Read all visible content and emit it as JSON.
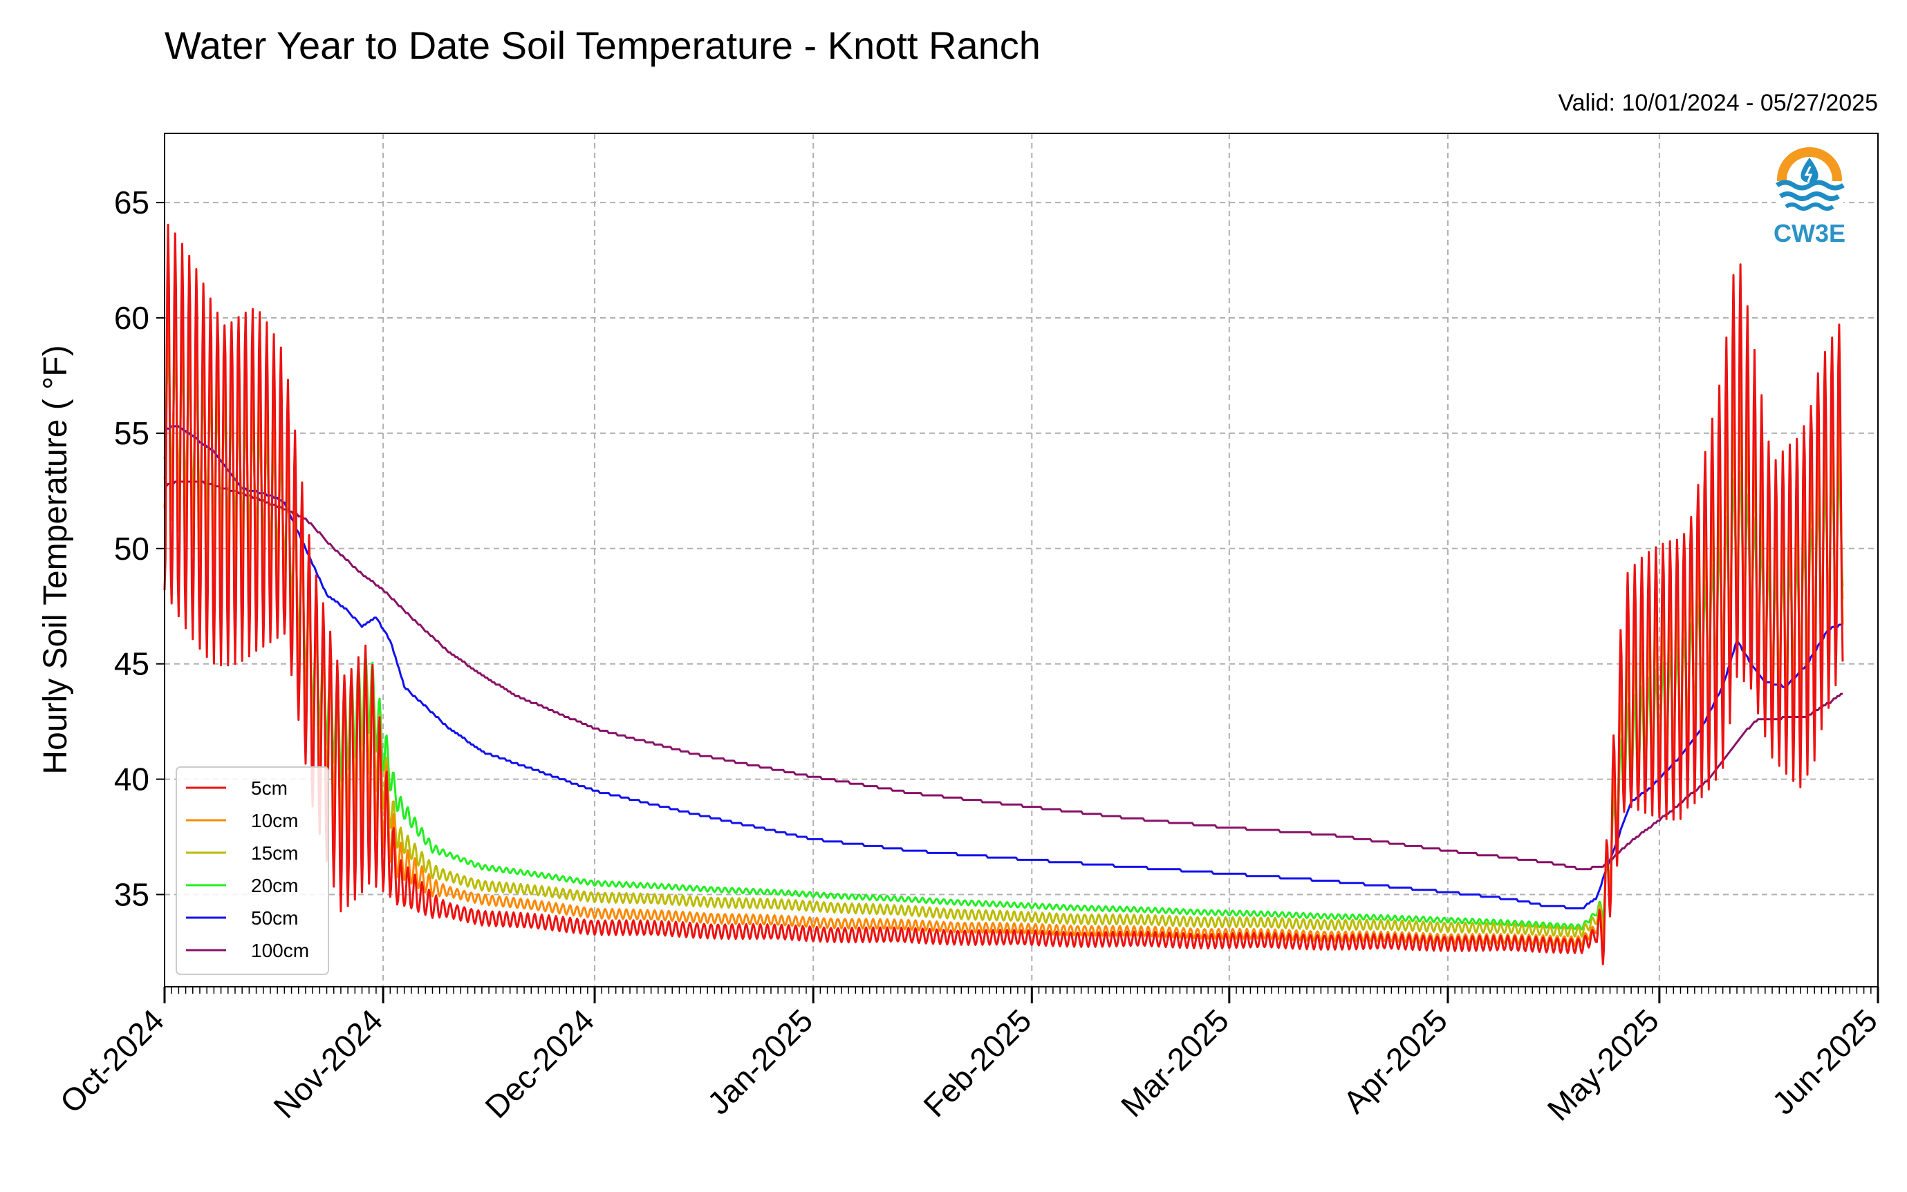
{
  "chart_data": {
    "type": "line",
    "title": "Water Year to Date Soil Temperature - Knott Ranch",
    "subtitle": "Valid: 10/01/2024 - 05/27/2025",
    "ylabel": "Hourly Soil Temperature ( °F)",
    "xlabel": "",
    "ylim": [
      31,
      68
    ],
    "xlim": [
      "2024-10-01",
      "2025-06-01"
    ],
    "grid": true,
    "legend_position": "lower-left",
    "x_ticks": [
      "Oct-2024",
      "Nov-2024",
      "Dec-2024",
      "Jan-2025",
      "Feb-2025",
      "Mar-2025",
      "Apr-2025",
      "May-2025",
      "Jun-2025"
    ],
    "x_tick_dates": [
      "2024-10-01",
      "2024-11-01",
      "2024-12-01",
      "2025-01-01",
      "2025-02-01",
      "2025-03-01",
      "2025-04-01",
      "2025-05-01",
      "2025-06-01"
    ],
    "y_ticks": [
      35,
      40,
      45,
      50,
      55,
      60,
      65
    ],
    "series": [
      {
        "name": "5cm",
        "color": "#ee1111",
        "daily_swing": true,
        "points": [
          [
            "2024-10-01",
            55
          ],
          [
            "2024-10-08",
            53.5
          ],
          [
            "2024-10-14",
            53
          ],
          [
            "2024-10-18",
            51.5
          ],
          [
            "2024-10-22",
            44
          ],
          [
            "2024-10-26",
            40
          ],
          [
            "2024-10-30",
            41
          ],
          [
            "2024-11-03",
            35.5
          ],
          [
            "2024-11-08",
            34.5
          ],
          [
            "2024-11-15",
            34
          ],
          [
            "2024-12-01",
            33.6
          ],
          [
            "2025-01-01",
            33.3
          ],
          [
            "2025-02-01",
            33.1
          ],
          [
            "2025-03-01",
            33.0
          ],
          [
            "2025-04-01",
            32.9
          ],
          [
            "2025-04-20",
            32.8
          ],
          [
            "2025-04-23",
            33.5
          ],
          [
            "2025-04-26",
            43
          ],
          [
            "2025-05-04",
            45
          ],
          [
            "2025-05-10",
            49
          ],
          [
            "2025-05-12",
            53
          ],
          [
            "2025-05-17",
            47
          ],
          [
            "2025-05-21",
            48
          ],
          [
            "2025-05-24",
            51
          ],
          [
            "2025-05-27",
            52.5
          ]
        ],
        "amps": [
          [
            "2024-10-01",
            8
          ],
          [
            "2024-10-14",
            7
          ],
          [
            "2024-10-18",
            6
          ],
          [
            "2024-10-22",
            5
          ],
          [
            "2024-10-30",
            5
          ],
          [
            "2024-11-03",
            1
          ],
          [
            "2024-11-10",
            0.3
          ],
          [
            "2025-04-22",
            0.3
          ],
          [
            "2025-04-26",
            5
          ],
          [
            "2025-05-05",
            6
          ],
          [
            "2025-05-12",
            9
          ],
          [
            "2025-05-17",
            6
          ],
          [
            "2025-05-23",
            8
          ],
          [
            "2025-05-27",
            7
          ]
        ]
      },
      {
        "name": "10cm",
        "color": "#ff8800",
        "daily_swing": true,
        "points": [
          [
            "2024-10-01",
            56
          ],
          [
            "2024-10-08",
            54
          ],
          [
            "2024-10-14",
            53
          ],
          [
            "2024-10-18",
            51.5
          ],
          [
            "2024-10-22",
            44
          ],
          [
            "2024-10-26",
            40.5
          ],
          [
            "2024-10-30",
            42
          ],
          [
            "2024-11-03",
            36.5
          ],
          [
            "2024-11-08",
            35.3
          ],
          [
            "2024-11-15",
            34.8
          ],
          [
            "2024-12-01",
            34.2
          ],
          [
            "2025-01-01",
            33.8
          ],
          [
            "2025-02-01",
            33.5
          ],
          [
            "2025-03-01",
            33.3
          ],
          [
            "2025-04-01",
            33.1
          ],
          [
            "2025-04-20",
            33.0
          ],
          [
            "2025-04-23",
            33.8
          ],
          [
            "2025-04-26",
            43
          ],
          [
            "2025-05-04",
            45
          ],
          [
            "2025-05-10",
            49
          ],
          [
            "2025-05-12",
            52.5
          ],
          [
            "2025-05-17",
            47
          ],
          [
            "2025-05-21",
            48
          ],
          [
            "2025-05-24",
            51
          ],
          [
            "2025-05-27",
            52
          ]
        ],
        "amps": [
          [
            "2024-10-01",
            5
          ],
          [
            "2024-10-18",
            4
          ],
          [
            "2024-10-22",
            3.5
          ],
          [
            "2024-10-30",
            3.5
          ],
          [
            "2024-11-03",
            0.8
          ],
          [
            "2024-11-10",
            0.2
          ],
          [
            "2025-04-22",
            0.2
          ],
          [
            "2025-04-26",
            3.5
          ],
          [
            "2025-05-05",
            4
          ],
          [
            "2025-05-12",
            6
          ],
          [
            "2025-05-17",
            4
          ],
          [
            "2025-05-23",
            5
          ],
          [
            "2025-05-27",
            5
          ]
        ]
      },
      {
        "name": "15cm",
        "color": "#bbbb00",
        "daily_swing": true,
        "points": [
          [
            "2024-10-01",
            56
          ],
          [
            "2024-10-08",
            54
          ],
          [
            "2024-10-14",
            53
          ],
          [
            "2024-10-18",
            51.5
          ],
          [
            "2024-10-22",
            44.5
          ],
          [
            "2024-10-26",
            41
          ],
          [
            "2024-10-30",
            43
          ],
          [
            "2024-11-03",
            37.5
          ],
          [
            "2024-11-08",
            36
          ],
          [
            "2024-11-15",
            35.4
          ],
          [
            "2024-12-01",
            34.9
          ],
          [
            "2025-01-01",
            34.5
          ],
          [
            "2025-02-01",
            34.0
          ],
          [
            "2025-03-01",
            33.8
          ],
          [
            "2025-04-01",
            33.6
          ],
          [
            "2025-04-20",
            33.4
          ],
          [
            "2025-04-23",
            34.2
          ],
          [
            "2025-04-26",
            42
          ],
          [
            "2025-05-04",
            44.5
          ],
          [
            "2025-05-10",
            48.5
          ],
          [
            "2025-05-12",
            52
          ],
          [
            "2025-05-17",
            47
          ],
          [
            "2025-05-21",
            48
          ],
          [
            "2025-05-24",
            50.5
          ],
          [
            "2025-05-27",
            51.5
          ]
        ],
        "amps": [
          [
            "2024-10-01",
            3.5
          ],
          [
            "2024-10-18",
            3
          ],
          [
            "2024-10-22",
            2.5
          ],
          [
            "2024-10-30",
            2.5
          ],
          [
            "2024-11-03",
            0.5
          ],
          [
            "2024-11-10",
            0.2
          ],
          [
            "2025-04-22",
            0.2
          ],
          [
            "2025-04-26",
            2.5
          ],
          [
            "2025-05-05",
            3
          ],
          [
            "2025-05-12",
            4
          ],
          [
            "2025-05-17",
            3
          ],
          [
            "2025-05-23",
            3.5
          ],
          [
            "2025-05-27",
            3.5
          ]
        ]
      },
      {
        "name": "20cm",
        "color": "#22ee22",
        "daily_swing": true,
        "points": [
          [
            "2024-10-01",
            56
          ],
          [
            "2024-10-08",
            54
          ],
          [
            "2024-10-14",
            53
          ],
          [
            "2024-10-18",
            51.5
          ],
          [
            "2024-10-22",
            45
          ],
          [
            "2024-10-26",
            42
          ],
          [
            "2024-10-30",
            44
          ],
          [
            "2024-11-03",
            39
          ],
          [
            "2024-11-08",
            37
          ],
          [
            "2024-11-15",
            36.2
          ],
          [
            "2024-12-01",
            35.5
          ],
          [
            "2025-01-01",
            35.0
          ],
          [
            "2025-02-01",
            34.5
          ],
          [
            "2025-03-01",
            34.2
          ],
          [
            "2025-04-01",
            33.9
          ],
          [
            "2025-04-20",
            33.6
          ],
          [
            "2025-04-23",
            34.5
          ],
          [
            "2025-04-26",
            41
          ],
          [
            "2025-05-04",
            44
          ],
          [
            "2025-05-10",
            48
          ],
          [
            "2025-05-12",
            51
          ],
          [
            "2025-05-17",
            46.5
          ],
          [
            "2025-05-21",
            47.5
          ],
          [
            "2025-05-24",
            50
          ],
          [
            "2025-05-27",
            51
          ]
        ],
        "amps": [
          [
            "2024-10-01",
            2.5
          ],
          [
            "2024-10-18",
            2
          ],
          [
            "2024-10-22",
            1.8
          ],
          [
            "2024-10-30",
            1.8
          ],
          [
            "2024-11-03",
            0.4
          ],
          [
            "2024-11-10",
            0.1
          ],
          [
            "2025-04-22",
            0.1
          ],
          [
            "2025-04-26",
            1.8
          ],
          [
            "2025-05-05",
            2
          ],
          [
            "2025-05-12",
            2.5
          ],
          [
            "2025-05-17",
            2
          ],
          [
            "2025-05-23",
            2.5
          ],
          [
            "2025-05-27",
            2.5
          ]
        ]
      },
      {
        "name": "50cm",
        "color": "#1111ee",
        "daily_swing": false,
        "points": [
          [
            "2024-10-01",
            55.2
          ],
          [
            "2024-10-03",
            55.3
          ],
          [
            "2024-10-08",
            54.2
          ],
          [
            "2024-10-12",
            52.6
          ],
          [
            "2024-10-16",
            52.3
          ],
          [
            "2024-10-18",
            52
          ],
          [
            "2024-10-21",
            50
          ],
          [
            "2024-10-24",
            48
          ],
          [
            "2024-10-27",
            47.3
          ],
          [
            "2024-10-29",
            46.6
          ],
          [
            "2024-10-31",
            47
          ],
          [
            "2024-11-02",
            46
          ],
          [
            "2024-11-04",
            44
          ],
          [
            "2024-11-10",
            42.3
          ],
          [
            "2024-11-15",
            41.2
          ],
          [
            "2024-12-01",
            39.5
          ],
          [
            "2024-12-15",
            38.5
          ],
          [
            "2025-01-01",
            37.4
          ],
          [
            "2025-01-15",
            36.9
          ],
          [
            "2025-02-01",
            36.5
          ],
          [
            "2025-02-15",
            36.2
          ],
          [
            "2025-03-01",
            35.9
          ],
          [
            "2025-03-15",
            35.6
          ],
          [
            "2025-04-01",
            35.1
          ],
          [
            "2025-04-10",
            34.8
          ],
          [
            "2025-04-15",
            34.5
          ],
          [
            "2025-04-20",
            34.4
          ],
          [
            "2025-04-22",
            34.8
          ],
          [
            "2025-04-24",
            36.5
          ],
          [
            "2025-04-27",
            39
          ],
          [
            "2025-04-30",
            39.7
          ],
          [
            "2025-05-04",
            41
          ],
          [
            "2025-05-07",
            42.2
          ],
          [
            "2025-05-10",
            44
          ],
          [
            "2025-05-12",
            46
          ],
          [
            "2025-05-14",
            45
          ],
          [
            "2025-05-16",
            44.2
          ],
          [
            "2025-05-19",
            44
          ],
          [
            "2025-05-22",
            45
          ],
          [
            "2025-05-25",
            46.5
          ],
          [
            "2025-05-27",
            46.7
          ]
        ]
      },
      {
        "name": "100cm",
        "color": "#881166",
        "daily_swing": false,
        "points": [
          [
            "2024-10-01",
            52.7
          ],
          [
            "2024-10-03",
            52.9
          ],
          [
            "2024-10-06",
            52.9
          ],
          [
            "2024-10-13",
            52.3
          ],
          [
            "2024-10-18",
            51.7
          ],
          [
            "2024-10-21",
            51.3
          ],
          [
            "2024-10-25",
            50
          ],
          [
            "2024-10-29",
            48.9
          ],
          [
            "2024-11-01",
            48.2
          ],
          [
            "2024-11-05",
            47
          ],
          [
            "2024-11-10",
            45.6
          ],
          [
            "2024-11-15",
            44.5
          ],
          [
            "2024-11-20",
            43.6
          ],
          [
            "2024-12-01",
            42.2
          ],
          [
            "2024-12-15",
            41.1
          ],
          [
            "2025-01-01",
            40.1
          ],
          [
            "2025-01-15",
            39.4
          ],
          [
            "2025-02-01",
            38.8
          ],
          [
            "2025-02-15",
            38.3
          ],
          [
            "2025-03-01",
            37.9
          ],
          [
            "2025-03-15",
            37.6
          ],
          [
            "2025-04-01",
            36.9
          ],
          [
            "2025-04-15",
            36.4
          ],
          [
            "2025-04-20",
            36.1
          ],
          [
            "2025-04-23",
            36.2
          ],
          [
            "2025-04-27",
            37.3
          ],
          [
            "2025-05-03",
            38.7
          ],
          [
            "2025-05-08",
            40
          ],
          [
            "2025-05-13",
            42
          ],
          [
            "2025-05-15",
            42.6
          ],
          [
            "2025-05-22",
            42.7
          ],
          [
            "2025-05-25",
            43.3
          ],
          [
            "2025-05-27",
            43.7
          ]
        ]
      }
    ]
  },
  "logo": {
    "label": "CW3E",
    "colors": {
      "ring": "#f39a1f",
      "wave": "#1e8cc4",
      "text": "#2b93c6"
    }
  }
}
